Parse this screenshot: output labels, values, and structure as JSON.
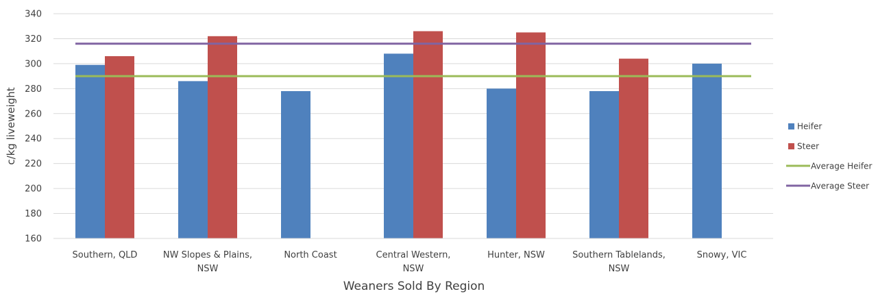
{
  "chart_data": {
    "type": "bar",
    "title": "",
    "xlabel": "Weaners Sold By Region",
    "ylabel": "c/kg liveweight",
    "ylim": [
      160,
      340
    ],
    "yticks": [
      160,
      180,
      200,
      220,
      240,
      260,
      280,
      300,
      320,
      340
    ],
    "grid": true,
    "legend_position": "right",
    "categories": [
      [
        "Southern, QLD"
      ],
      [
        "NW Slopes & Plains,",
        "NSW"
      ],
      [
        "North Coast"
      ],
      [
        "Central Western,",
        "NSW"
      ],
      [
        "Hunter, NSW"
      ],
      [
        "Southern Tablelands,",
        "NSW"
      ],
      [
        "Snowy, VIC"
      ]
    ],
    "series": [
      {
        "name": "Heifer",
        "type": "bar",
        "color": "#4f81bd",
        "values": [
          299,
          286,
          278,
          308,
          280,
          278,
          300
        ]
      },
      {
        "name": "Steer",
        "type": "bar",
        "color": "#c0504d",
        "values": [
          306,
          322,
          null,
          326,
          325,
          304,
          null
        ]
      },
      {
        "name": "Average Heifer",
        "type": "line",
        "color": "#9bbb59",
        "value": 290
      },
      {
        "name": "Average Steer",
        "type": "line",
        "color": "#8064a2",
        "value": 316
      }
    ]
  }
}
